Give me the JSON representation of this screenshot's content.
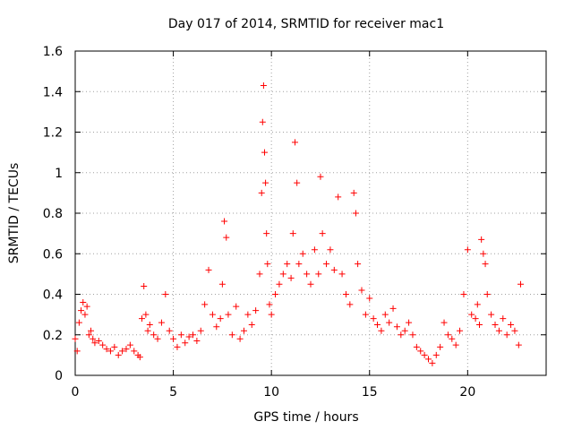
{
  "chart_data": {
    "type": "scatter",
    "title": "Day 017 of 2014, SRMTID for receiver mac1",
    "xlabel": "GPS time / hours",
    "ylabel": "SRMTID / TECUs",
    "xlim": [
      0,
      24
    ],
    "ylim": [
      0,
      1.6
    ],
    "xticks": [
      0,
      5,
      10,
      15,
      20
    ],
    "yticks": [
      0,
      0.2,
      0.4,
      0.6,
      0.8,
      1,
      1.2,
      1.4,
      1.6
    ],
    "xtick_labels": [
      "0",
      "5",
      "10",
      "15",
      "20"
    ],
    "ytick_labels": [
      "0",
      "0.2",
      "0.4",
      "0.6",
      "0.8",
      "1",
      "1.2",
      "1.4",
      "1.6"
    ],
    "grid": true,
    "marker": "+",
    "color": "#ff0000",
    "series": [
      {
        "name": "SRMTID",
        "x": [
          0.0,
          0.1,
          0.2,
          0.3,
          0.4,
          0.5,
          0.6,
          0.7,
          0.8,
          0.9,
          1.0,
          1.2,
          1.4,
          1.6,
          1.8,
          2.0,
          2.2,
          2.4,
          2.6,
          2.8,
          3.0,
          3.2,
          3.3,
          3.4,
          3.5,
          3.6,
          3.7,
          3.8,
          4.0,
          4.2,
          4.4,
          4.6,
          4.8,
          5.0,
          5.2,
          5.4,
          5.6,
          5.8,
          6.0,
          6.2,
          6.4,
          6.6,
          6.8,
          7.0,
          7.2,
          7.4,
          7.5,
          7.6,
          7.7,
          7.8,
          8.0,
          8.2,
          8.4,
          8.6,
          8.8,
          9.0,
          9.2,
          9.4,
          9.5,
          9.55,
          9.6,
          9.65,
          9.7,
          9.75,
          9.8,
          9.9,
          10.0,
          10.2,
          10.4,
          10.6,
          10.8,
          11.0,
          11.1,
          11.2,
          11.3,
          11.4,
          11.6,
          11.8,
          12.0,
          12.2,
          12.4,
          12.5,
          12.6,
          12.8,
          13.0,
          13.2,
          13.4,
          13.6,
          13.8,
          14.0,
          14.2,
          14.3,
          14.4,
          14.6,
          14.8,
          15.0,
          15.2,
          15.4,
          15.6,
          15.8,
          16.0,
          16.2,
          16.4,
          16.6,
          16.8,
          17.0,
          17.2,
          17.4,
          17.6,
          17.8,
          18.0,
          18.2,
          18.4,
          18.6,
          18.8,
          19.0,
          19.2,
          19.4,
          19.6,
          19.8,
          20.0,
          20.2,
          20.4,
          20.5,
          20.6,
          20.7,
          20.8,
          20.9,
          21.0,
          21.2,
          21.4,
          21.6,
          21.8,
          22.0,
          22.2,
          22.4,
          22.6,
          22.7
        ],
        "y": [
          0.18,
          0.12,
          0.26,
          0.32,
          0.36,
          0.3,
          0.34,
          0.2,
          0.22,
          0.18,
          0.16,
          0.17,
          0.15,
          0.13,
          0.12,
          0.14,
          0.1,
          0.12,
          0.13,
          0.15,
          0.12,
          0.1,
          0.09,
          0.28,
          0.44,
          0.3,
          0.22,
          0.25,
          0.2,
          0.18,
          0.26,
          0.4,
          0.22,
          0.18,
          0.14,
          0.2,
          0.16,
          0.19,
          0.2,
          0.17,
          0.22,
          0.35,
          0.52,
          0.3,
          0.24,
          0.28,
          0.45,
          0.76,
          0.68,
          0.3,
          0.2,
          0.34,
          0.18,
          0.22,
          0.3,
          0.25,
          0.32,
          0.5,
          0.9,
          1.25,
          1.43,
          1.1,
          0.95,
          0.7,
          0.55,
          0.35,
          0.3,
          0.4,
          0.45,
          0.5,
          0.55,
          0.48,
          0.7,
          1.15,
          0.95,
          0.55,
          0.6,
          0.5,
          0.45,
          0.62,
          0.5,
          0.98,
          0.7,
          0.55,
          0.62,
          0.52,
          0.88,
          0.5,
          0.4,
          0.35,
          0.9,
          0.8,
          0.55,
          0.42,
          0.3,
          0.38,
          0.28,
          0.25,
          0.22,
          0.3,
          0.26,
          0.33,
          0.24,
          0.2,
          0.22,
          0.26,
          0.2,
          0.14,
          0.12,
          0.1,
          0.08,
          0.06,
          0.1,
          0.14,
          0.26,
          0.2,
          0.18,
          0.15,
          0.22,
          0.4,
          0.62,
          0.3,
          0.28,
          0.35,
          0.25,
          0.67,
          0.6,
          0.55,
          0.4,
          0.3,
          0.25,
          0.22,
          0.28,
          0.2,
          0.25,
          0.22,
          0.15,
          0.45
        ]
      }
    ]
  }
}
